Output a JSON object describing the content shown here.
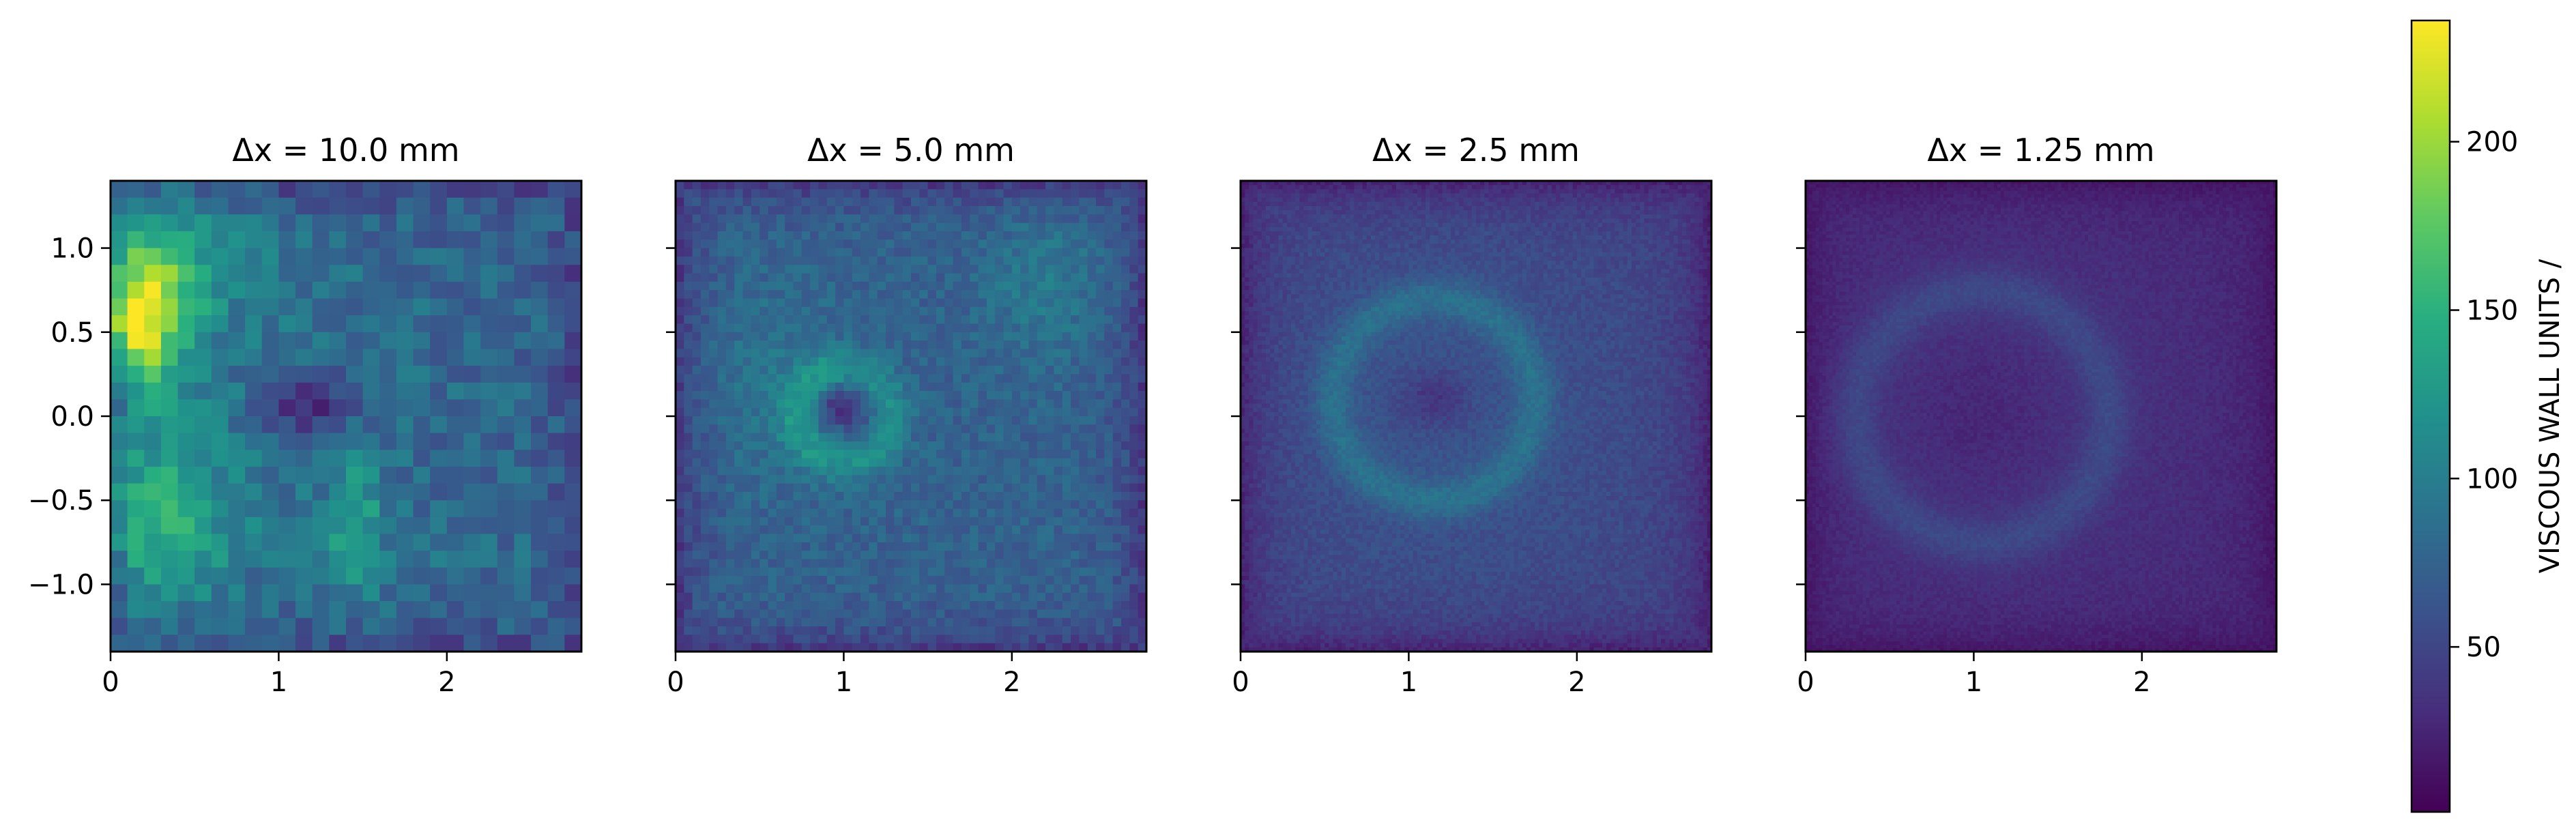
{
  "chart_data": {
    "type": "heatmap",
    "colormap": "viridis",
    "colorbar": {
      "label": "VISCOUS WALL UNITS /",
      "range": [
        1,
        236
      ],
      "ticks": [
        50,
        100,
        150,
        200
      ],
      "tick_labels": [
        "50",
        "100",
        "150",
        "200"
      ]
    },
    "panels": [
      {
        "title": "Δx = 10.0 mm",
        "grid": [
          28,
          28
        ],
        "xlim": [
          0,
          2.8
        ],
        "ylim": [
          -1.4,
          1.4
        ],
        "xticks": [
          0,
          1,
          2
        ],
        "xtick_labels": [
          "0",
          "1",
          "2"
        ],
        "yticks": [
          1.0,
          0.5,
          0.0,
          -0.5,
          -1.0
        ],
        "ytick_labels": [
          "1.0",
          "0.5",
          "0.0",
          "−0.5",
          "−1.0"
        ],
        "show_ytick_labels": true,
        "field": {
          "base": 88,
          "features": [
            {
              "x": 0.15,
              "y": 0.55,
              "sx": 0.18,
              "sy": 0.3,
              "amp": 130
            },
            {
              "x": 0.35,
              "y": 0.9,
              "sx": 0.3,
              "sy": 0.35,
              "amp": 55
            },
            {
              "x": 0.25,
              "y": -0.6,
              "sx": 0.3,
              "sy": 0.35,
              "amp": 75
            },
            {
              "x": 1.45,
              "y": -0.65,
              "sx": 0.12,
              "sy": 0.3,
              "amp": 55
            },
            {
              "x": 1.2,
              "y": 0.05,
              "sx": 0.2,
              "sy": 0.12,
              "amp": -55
            },
            {
              "x": 2.2,
              "y": 0.2,
              "sx": 0.8,
              "sy": 1.2,
              "amp": -8
            }
          ],
          "edge_drop": 30,
          "noise": 22
        }
      },
      {
        "title": "Δx = 5.0 mm",
        "grid": [
          56,
          56
        ],
        "xlim": [
          0,
          2.8
        ],
        "ylim": [
          -1.4,
          1.4
        ],
        "xticks": [
          0,
          1,
          2
        ],
        "xtick_labels": [
          "0",
          "1",
          "2"
        ],
        "yticks": [
          1.0,
          0.5,
          0.0,
          -0.5,
          -1.0
        ],
        "show_ytick_labels": false,
        "field": {
          "base": 75,
          "features": [
            {
              "x": 1.0,
              "y": 0.0,
              "r": 0.28,
              "w": 0.12,
              "amp": 40,
              "ring": true
            },
            {
              "x": 1.0,
              "y": 0.05,
              "sx": 0.1,
              "sy": 0.08,
              "amp": -50
            },
            {
              "x": 0.55,
              "y": 0.2,
              "sx": 0.3,
              "sy": 0.4,
              "amp": 18
            },
            {
              "x": 2.2,
              "y": 0.8,
              "sx": 0.25,
              "sy": 0.3,
              "amp": 22
            }
          ],
          "edge_drop": 35,
          "noise": 14
        }
      },
      {
        "title": "Δx = 2.5 mm",
        "grid": [
          112,
          112
        ],
        "xlim": [
          0,
          2.8
        ],
        "ylim": [
          -1.4,
          1.4
        ],
        "xticks": [
          0,
          1,
          2
        ],
        "xtick_labels": [
          "0",
          "1",
          "2"
        ],
        "yticks": [
          1.0,
          0.5,
          0.0,
          -0.5,
          -1.0
        ],
        "show_ytick_labels": false,
        "field": {
          "base": 48,
          "features": [
            {
              "x": 1.15,
              "y": 0.1,
              "r": 0.6,
              "w": 0.12,
              "amp": 30,
              "ring": true
            },
            {
              "x": 1.15,
              "y": 0.1,
              "sx": 0.15,
              "sy": 0.12,
              "amp": -25
            },
            {
              "x": 1.2,
              "y": 0.0,
              "sx": 0.9,
              "sy": 0.95,
              "amp": 14
            }
          ],
          "edge_drop": 28,
          "noise": 8
        }
      },
      {
        "title": "Δx = 1.25 mm",
        "grid": [
          140,
          140
        ],
        "xlim": [
          0,
          2.8
        ],
        "ylim": [
          -1.4,
          1.4
        ],
        "xticks": [
          0,
          1,
          2
        ],
        "xtick_labels": [
          "0",
          "1",
          "2"
        ],
        "yticks": [
          1.0,
          0.5,
          0.0,
          -0.5,
          -1.0
        ],
        "show_ytick_labels": false,
        "field": {
          "base": 26,
          "features": [
            {
              "x": 1.05,
              "y": 0.0,
              "r": 0.75,
              "w": 0.14,
              "amp": 20,
              "ring": true
            },
            {
              "x": 1.05,
              "y": 0.0,
              "sx": 0.3,
              "sy": 0.3,
              "amp": -10
            },
            {
              "x": 1.1,
              "y": 0.0,
              "sx": 1.0,
              "sy": 1.0,
              "amp": 10
            }
          ],
          "edge_drop": 14,
          "noise": 5
        }
      }
    ]
  }
}
